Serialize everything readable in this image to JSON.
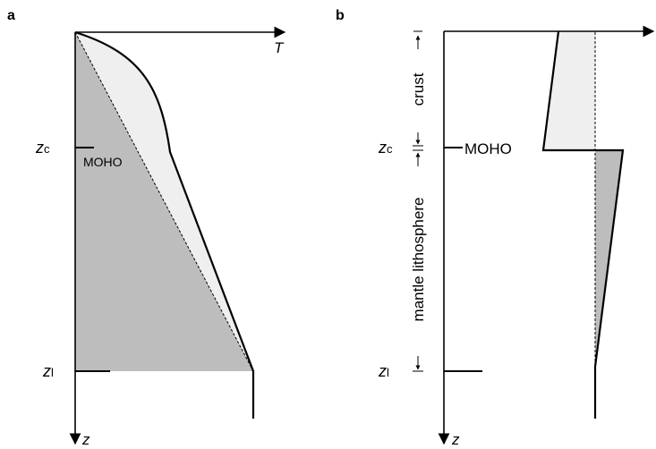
{
  "panel_a": {
    "letter": "a",
    "axis_x_label": "T",
    "axis_y_label": "z",
    "zc_label": {
      "main": "z",
      "sub": "c"
    },
    "zl_label": {
      "main": "z",
      "sub": "l"
    },
    "moho_label": "MOHO"
  },
  "panel_b": {
    "letter": "b",
    "axis_y_label": "z",
    "zc_label": {
      "main": "z",
      "sub": "c"
    },
    "zl_label": {
      "main": "z",
      "sub": "l"
    },
    "moho_label": "MOHO",
    "crust_label": "crust",
    "mantle_label": "mantle lithosphere"
  },
  "colors": {
    "light_fill": "#efefef",
    "dark_fill": "#bdbdbd",
    "line": "#000000"
  }
}
